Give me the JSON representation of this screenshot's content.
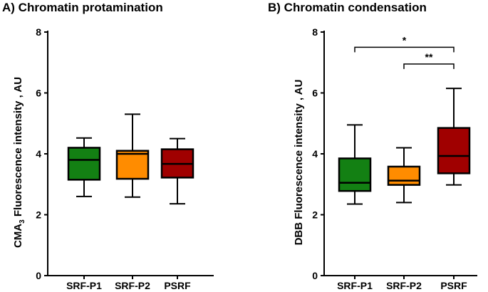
{
  "chart_data": [
    {
      "type": "boxplot",
      "title": "A) Chromatin protamination",
      "ylabel_main": "CMA",
      "ylabel_sub": "3",
      "ylabel_rest": " Fluorescence intensity , AU",
      "ylim": [
        0,
        8
      ],
      "yticks": [
        0,
        2,
        4,
        6,
        8
      ],
      "categories": [
        "SRF-P1",
        "SRF-P2",
        "PSRF"
      ],
      "colors": [
        "#138013",
        "#ff8c00",
        "#a00000"
      ],
      "boxes": [
        {
          "min": 2.6,
          "q1": 3.15,
          "median": 3.8,
          "q3": 4.2,
          "max": 4.52
        },
        {
          "min": 2.58,
          "q1": 3.18,
          "median": 4.0,
          "q3": 4.1,
          "max": 5.3
        },
        {
          "min": 2.36,
          "q1": 3.22,
          "median": 3.67,
          "q3": 4.15,
          "max": 4.5
        }
      ],
      "significance": []
    },
    {
      "type": "boxplot",
      "title": "B) Chromatin condensation",
      "ylabel_main": "DBB Fluorescence intensity , AU",
      "ylabel_sub": "",
      "ylabel_rest": "",
      "ylim": [
        0,
        8
      ],
      "yticks": [
        0,
        2,
        4,
        6,
        8
      ],
      "categories": [
        "SRF-P1",
        "SRF-P2",
        "PSRF"
      ],
      "colors": [
        "#138013",
        "#ff8c00",
        "#a00000"
      ],
      "boxes": [
        {
          "min": 2.35,
          "q1": 2.78,
          "median": 3.05,
          "q3": 3.85,
          "max": 4.95
        },
        {
          "min": 2.4,
          "q1": 2.98,
          "median": 3.12,
          "q3": 3.58,
          "max": 4.2
        },
        {
          "min": 2.98,
          "q1": 3.36,
          "median": 3.93,
          "q3": 4.85,
          "max": 6.15
        }
      ],
      "significance": [
        {
          "from": 0,
          "to": 2,
          "level": 7.5,
          "label": "*"
        },
        {
          "from": 1,
          "to": 2,
          "level": 6.95,
          "label": "**"
        }
      ]
    }
  ]
}
